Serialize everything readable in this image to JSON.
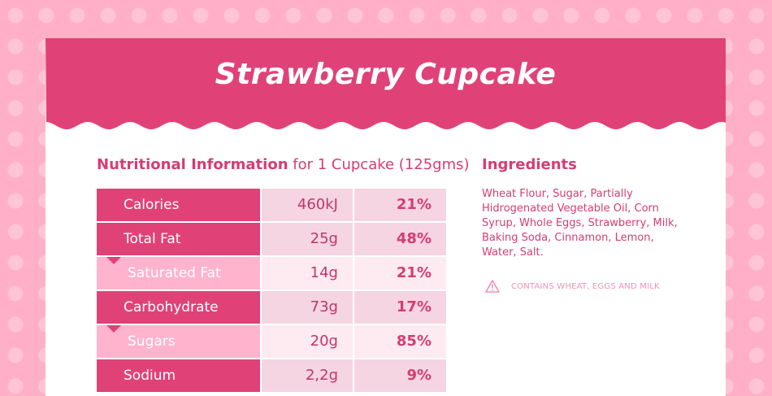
{
  "title": "Strawberry Cupcake",
  "nutrition": {
    "heading_bold": "Nutritional Information",
    "heading_rest": "for 1 Cupcake (125gms)",
    "rows": [
      {
        "label": "Calories",
        "amount": "460kJ",
        "percent": "21%",
        "type": "main"
      },
      {
        "label": "Total Fat",
        "amount": "25g",
        "percent": "48%",
        "type": "main"
      },
      {
        "label": "Saturated Fat",
        "amount": "14g",
        "percent": "21%",
        "type": "sub"
      },
      {
        "label": "Carbohydrate",
        "amount": "73g",
        "percent": "17%",
        "type": "main"
      },
      {
        "label": "Sugars",
        "amount": "20g",
        "percent": "85%",
        "type": "sub"
      },
      {
        "label": "Sodium",
        "amount": "2,2g",
        "percent": "9%",
        "type": "main"
      }
    ]
  },
  "ingredients": {
    "heading": "Ingredients",
    "text": "Wheat Flour, Sugar, Partially Hidrogenated Vegetable Oil, Corn Syrup, Whole Eggs, Strawberry, Milk, Baking Soda, Cinnamon, Lemon, Water, Salt.",
    "warning_icon": "warning-triangle-icon",
    "warning": "CONTAINS WHEAT, EGGS AND MILK"
  },
  "colors": {
    "primary": "#e04278",
    "light_row": "#ffb3cc",
    "background": "#ffb0c8"
  }
}
